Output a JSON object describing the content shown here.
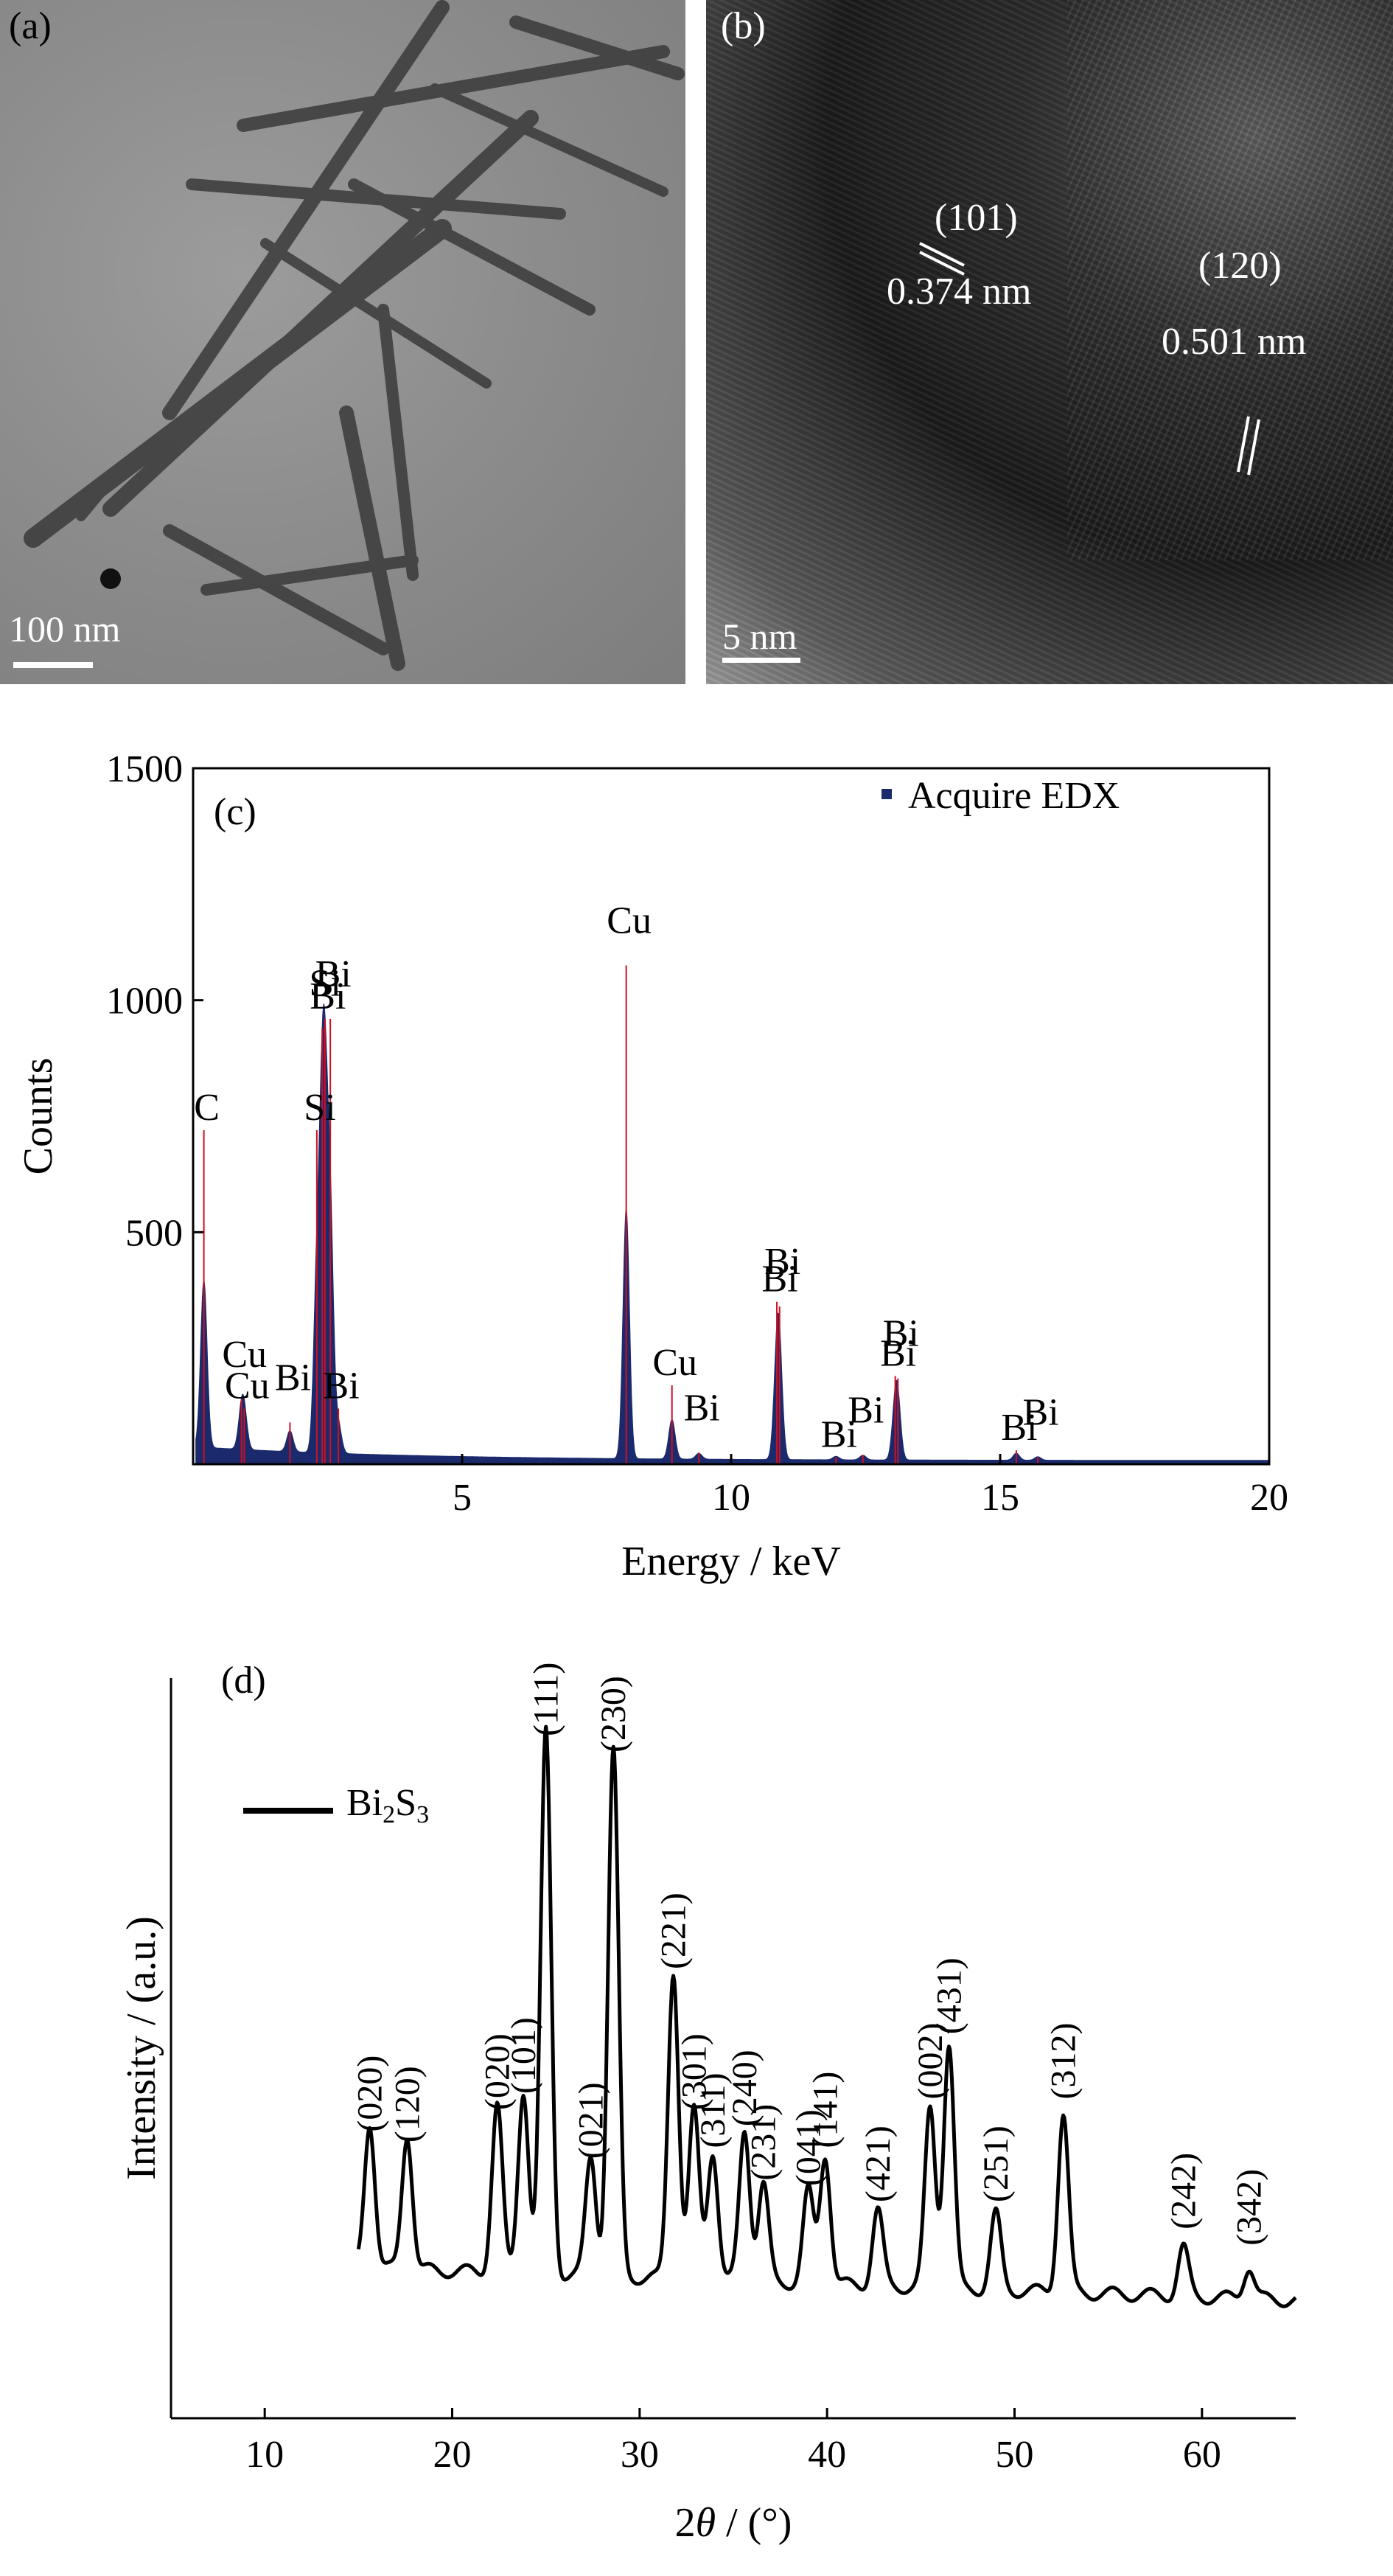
{
  "panel_a": {
    "label": "(a)",
    "scale_bar": "100 nm"
  },
  "panel_b": {
    "label": "(b)",
    "plane1": "(101)",
    "spacing1": "0.374 nm",
    "plane2": "(120)",
    "spacing2": "0.501 nm",
    "scale_bar": "5 nm"
  },
  "chart_data": [
    {
      "type": "line",
      "panel_label": "(c)",
      "xlabel": "Energy / keV",
      "ylabel": "Counts",
      "xlim": [
        0,
        20
      ],
      "ylim": [
        0,
        1500
      ],
      "xticks": [
        "5",
        "10",
        "15",
        "20"
      ],
      "yticks": [
        "500",
        "1000",
        "1500"
      ],
      "legend": "Acquire EDX",
      "legend_position": "top-right",
      "peaks": [
        {
          "x": 0.2,
          "y": 720,
          "label": "C"
        },
        {
          "x": 0.9,
          "y": 140,
          "label": "Cu"
        },
        {
          "x": 0.95,
          "y": 120,
          "label": "Cu"
        },
        {
          "x": 1.8,
          "y": 90,
          "label": "Bi"
        },
        {
          "x": 2.3,
          "y": 720,
          "label": "Si"
        },
        {
          "x": 2.4,
          "y": 940,
          "label": "Si"
        },
        {
          "x": 2.45,
          "y": 960,
          "label": "Bi"
        },
        {
          "x": 2.55,
          "y": 960,
          "label": "Bi"
        },
        {
          "x": 2.7,
          "y": 120,
          "label": "Bi"
        },
        {
          "x": 8.05,
          "y": 1075,
          "label": "Cu"
        },
        {
          "x": 8.9,
          "y": 170,
          "label": "Cu"
        },
        {
          "x": 9.4,
          "y": 25,
          "label": "Bi"
        },
        {
          "x": 10.85,
          "y": 350,
          "label": "Bi"
        },
        {
          "x": 10.9,
          "y": 340,
          "label": "Bi"
        },
        {
          "x": 11.95,
          "y": 15,
          "label": "Bi"
        },
        {
          "x": 12.45,
          "y": 20,
          "label": "Bi"
        },
        {
          "x": 13.05,
          "y": 190,
          "label": "Bi"
        },
        {
          "x": 13.1,
          "y": 185,
          "label": "Bi"
        },
        {
          "x": 15.3,
          "y": 30,
          "label": "Bi"
        },
        {
          "x": 15.7,
          "y": 15,
          "label": "Bi"
        }
      ],
      "colors": {
        "fill": "#1a2a6c",
        "marker": "#d01020"
      }
    },
    {
      "type": "line",
      "panel_label": "(d)",
      "xlabel": "2θ / (°)",
      "ylabel": "Intensity / (a.u.)",
      "xlim": [
        5,
        65
      ],
      "xticks": [
        "10",
        "20",
        "30",
        "40",
        "50",
        "60"
      ],
      "series": [
        {
          "name": "Bi2S3"
        }
      ],
      "legend_position": "top-left",
      "peaks": [
        {
          "x": 15.6,
          "y": 0.27,
          "label": "(020)"
        },
        {
          "x": 17.6,
          "y": 0.25,
          "label": "(120)"
        },
        {
          "x": 22.4,
          "y": 0.31,
          "label": "(020)"
        },
        {
          "x": 23.8,
          "y": 0.34,
          "label": "(101)"
        },
        {
          "x": 25.0,
          "y": 1.0,
          "label": "(111)"
        },
        {
          "x": 27.4,
          "y": 0.22,
          "label": "(021)"
        },
        {
          "x": 28.6,
          "y": 0.97,
          "label": "(230)"
        },
        {
          "x": 31.8,
          "y": 0.57,
          "label": "(221)"
        },
        {
          "x": 32.9,
          "y": 0.31,
          "label": "(301)"
        },
        {
          "x": 33.9,
          "y": 0.24,
          "label": "(311)"
        },
        {
          "x": 35.6,
          "y": 0.28,
          "label": "(240)"
        },
        {
          "x": 36.6,
          "y": 0.18,
          "label": "(231)"
        },
        {
          "x": 39.0,
          "y": 0.17,
          "label": "(041)"
        },
        {
          "x": 39.9,
          "y": 0.24,
          "label": "(141)"
        },
        {
          "x": 42.7,
          "y": 0.14,
          "label": "(421)"
        },
        {
          "x": 45.5,
          "y": 0.33,
          "label": "(002)"
        },
        {
          "x": 46.5,
          "y": 0.45,
          "label": "(431)"
        },
        {
          "x": 49.0,
          "y": 0.14,
          "label": "(251)"
        },
        {
          "x": 52.6,
          "y": 0.33,
          "label": "(312)"
        },
        {
          "x": 59.0,
          "y": 0.09,
          "label": "(242)"
        },
        {
          "x": 62.5,
          "y": 0.06,
          "label": "(342)"
        }
      ]
    }
  ]
}
